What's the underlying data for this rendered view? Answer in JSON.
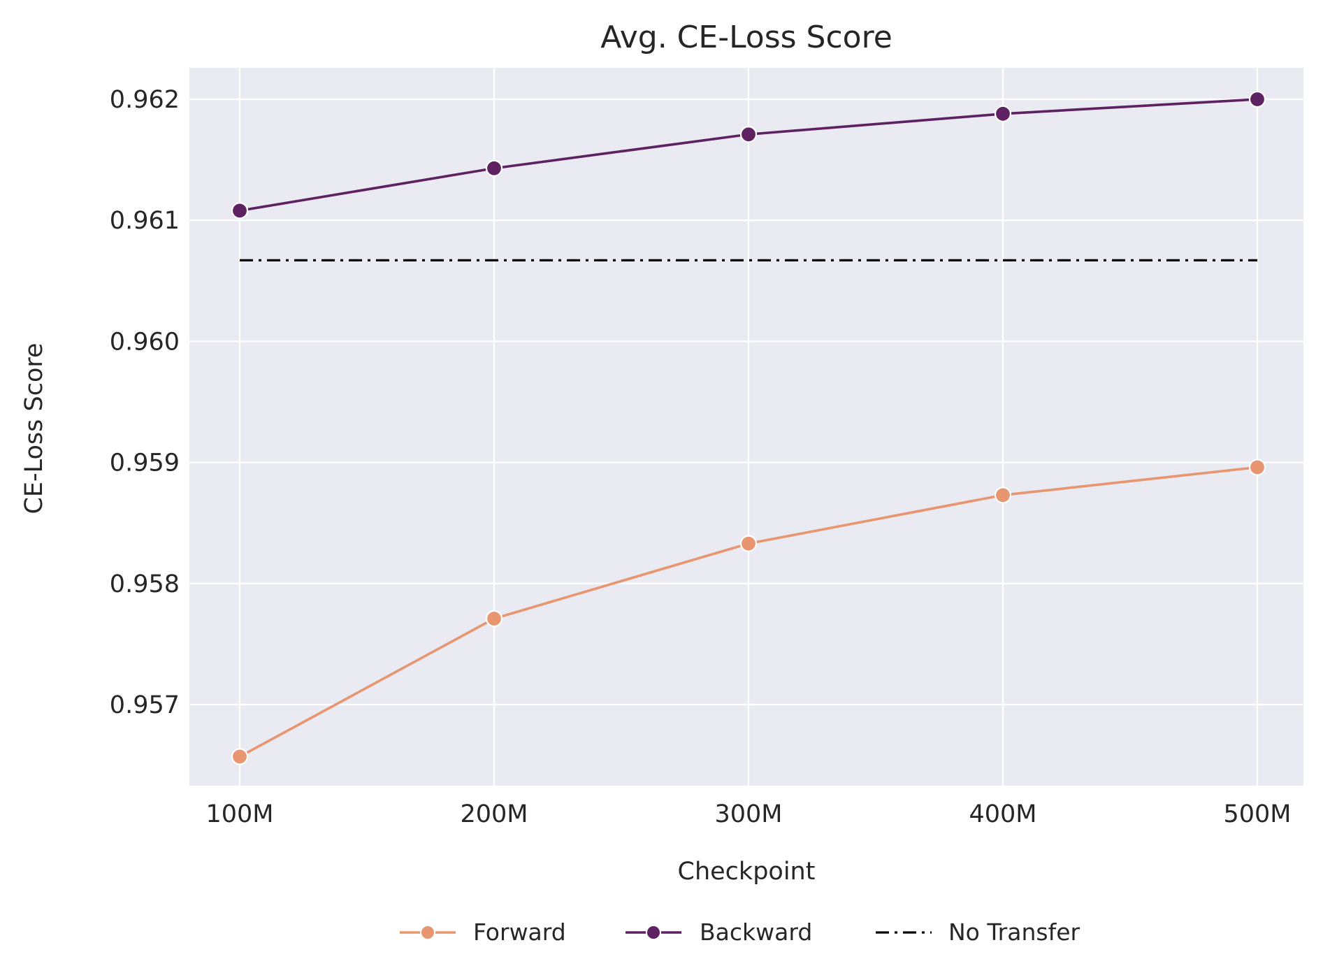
{
  "chart_data": {
    "type": "line",
    "title": "Avg. CE-Loss Score",
    "xlabel": "Checkpoint",
    "ylabel": "CE-Loss Score",
    "categories": [
      "100M",
      "200M",
      "300M",
      "400M",
      "500M"
    ],
    "ylim": [
      0.95633,
      0.96226
    ],
    "yticks": [
      0.957,
      0.958,
      0.959,
      0.96,
      0.961,
      0.962
    ],
    "ytick_labels": [
      "0.957",
      "0.958",
      "0.959",
      "0.960",
      "0.961",
      "0.962"
    ],
    "grid": true,
    "legend_position": "bottom-center",
    "series": [
      {
        "name": "Forward",
        "color": "#e8966f",
        "style": "solid",
        "marker": "circle",
        "values": [
          0.95657,
          0.95771,
          0.95833,
          0.95873,
          0.95896
        ]
      },
      {
        "name": "Backward",
        "color": "#5e2262",
        "style": "solid",
        "marker": "circle",
        "values": [
          0.96108,
          0.96143,
          0.96171,
          0.96188,
          0.962
        ]
      },
      {
        "name": "No Transfer",
        "color": "#000000",
        "style": "dashdot",
        "marker": "none",
        "values": [
          0.96067,
          0.96067,
          0.96067,
          0.96067,
          0.96067
        ]
      }
    ],
    "colors": {
      "plot_background": "#eaeaf2",
      "grid": "#ffffff",
      "text": "#262626"
    }
  }
}
